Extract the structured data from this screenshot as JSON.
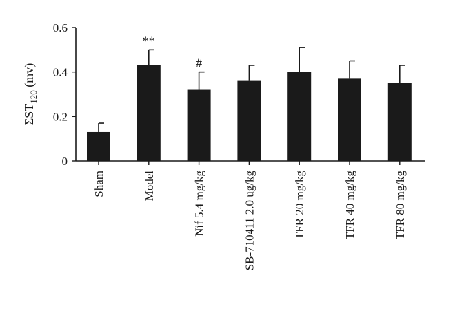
{
  "chart_data": {
    "type": "bar",
    "ylabel": {
      "main": "ΣST",
      "sub": "120",
      "suffix": " (mv)"
    },
    "ylim": [
      0,
      0.6
    ],
    "yticks": [
      {
        "value": 0,
        "label": "0"
      },
      {
        "value": 0.2,
        "label": "0.2"
      },
      {
        "value": 0.4,
        "label": "0.4"
      },
      {
        "value": 0.6,
        "label": "0.6"
      }
    ],
    "categories": [
      "Sham",
      "Model",
      "Nif 5.4 mg/kg",
      "SB-710411 2.0 ug/kg",
      "TFR 20 mg/kg",
      "TFR 40 mg/kg",
      "TFR 80 mg/kg"
    ],
    "values": [
      0.13,
      0.43,
      0.32,
      0.36,
      0.4,
      0.37,
      0.35
    ],
    "errors": [
      0.04,
      0.07,
      0.08,
      0.07,
      0.11,
      0.08,
      0.08
    ],
    "annotations": [
      "",
      "**",
      "#",
      "",
      "",
      "",
      ""
    ],
    "bar_color": "#1a1a1a"
  }
}
